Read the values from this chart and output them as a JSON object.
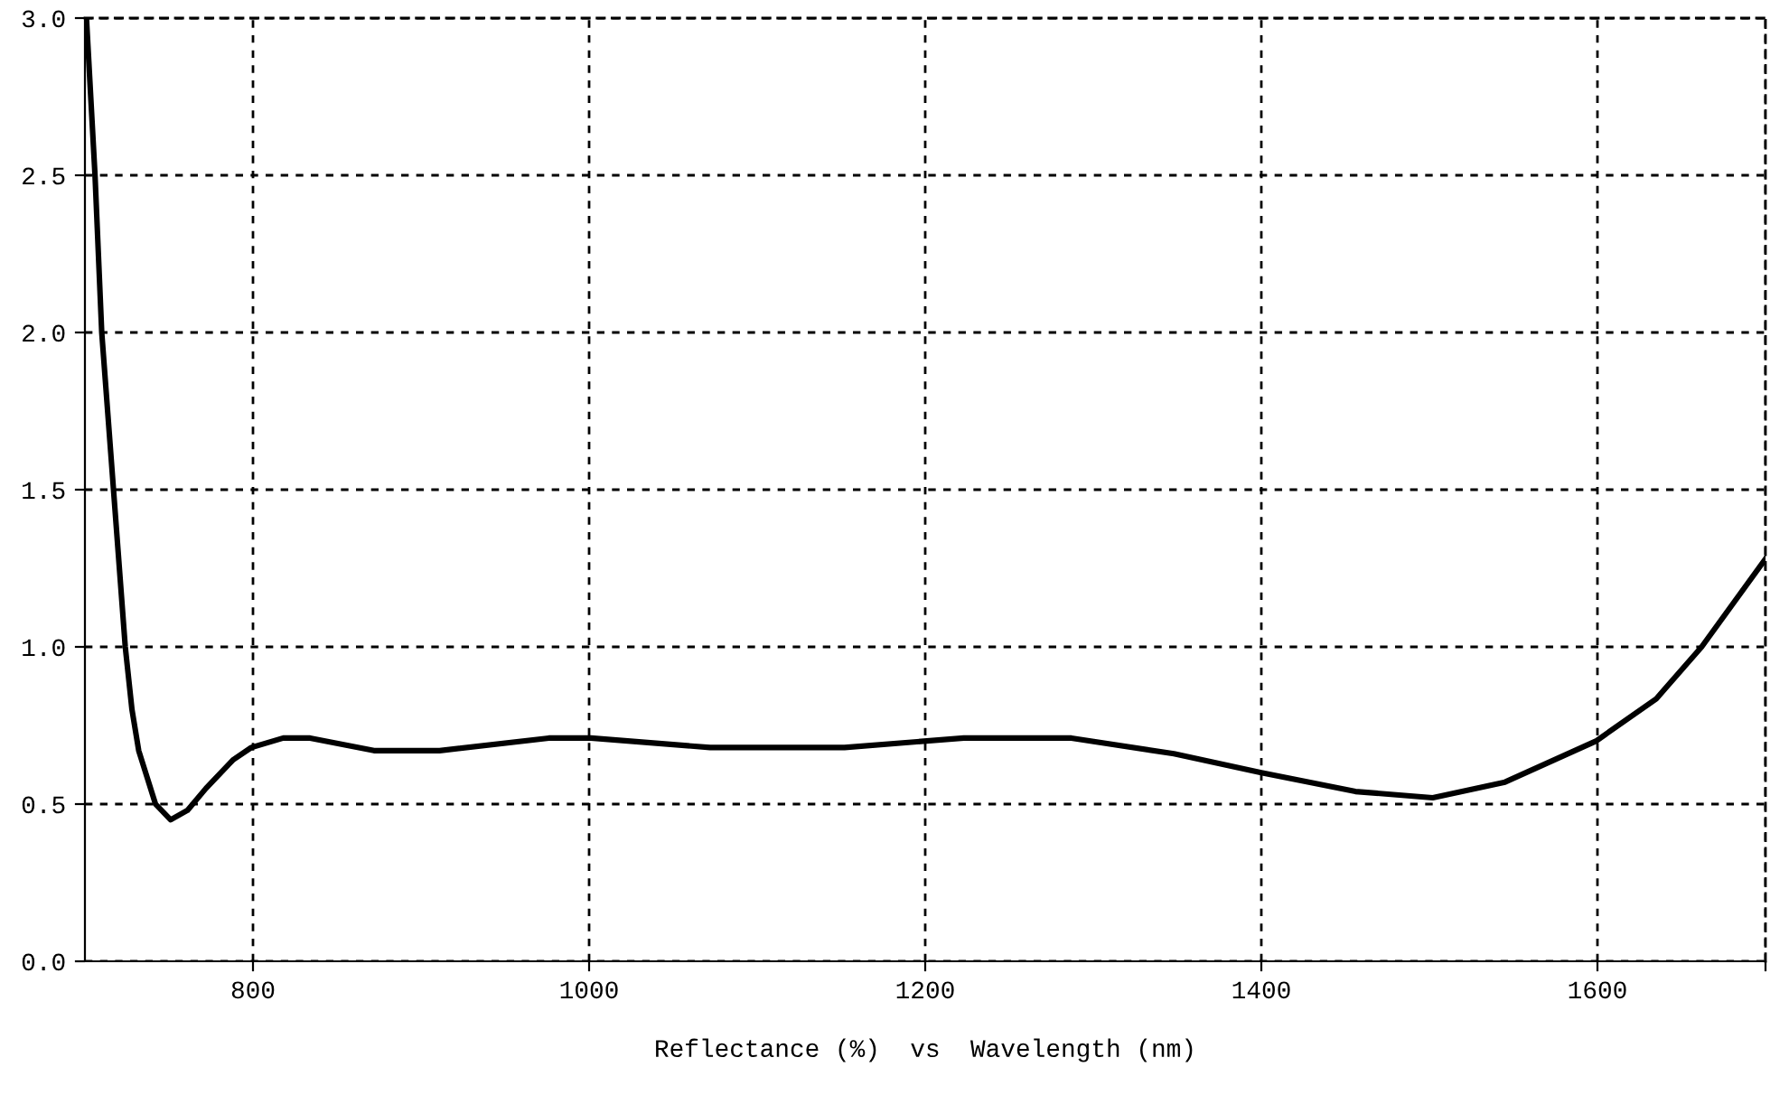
{
  "chart_data": {
    "type": "line",
    "xlabel": "Reflectance (%)  vs  Wavelength (nm)",
    "xlim": [
      700,
      1700
    ],
    "ylim": [
      0,
      3
    ],
    "xticks": [
      800,
      1000,
      1200,
      1400,
      1600,
      {
        "value": 1700,
        "label": null
      }
    ],
    "yticks": [
      {
        "value": 0,
        "label": "0.0"
      },
      {
        "value": 0.5,
        "label": "0.5"
      },
      {
        "value": 1,
        "label": "1.0"
      },
      {
        "value": 1.5,
        "label": "1.5"
      },
      {
        "value": 2,
        "label": "2.0"
      },
      {
        "value": 2.5,
        "label": "2.5"
      },
      {
        "value": 3,
        "label": "3.0"
      }
    ],
    "grid": true,
    "line_style": "solid",
    "marker": "none",
    "series": [
      {
        "color": "#000000",
        "x": [
          701,
          706,
          710,
          717,
          724,
          728,
          732,
          742,
          751,
          761,
          772,
          788,
          799,
          818,
          834,
          872,
          911,
          976,
          1001,
          1072,
          1152,
          1223,
          1287,
          1348,
          1400,
          1456,
          1502,
          1545,
          1599,
          1635,
          1662,
          1700
        ],
        "values": [
          2.99,
          2.5,
          2.0,
          1.5,
          1.0,
          0.8,
          0.67,
          0.5,
          0.45,
          0.48,
          0.55,
          0.64,
          0.68,
          0.71,
          0.71,
          0.67,
          0.67,
          0.71,
          0.71,
          0.68,
          0.68,
          0.71,
          0.71,
          0.66,
          0.6,
          0.54,
          0.52,
          0.57,
          0.7,
          0.835,
          1.0,
          1.28
        ]
      }
    ]
  }
}
